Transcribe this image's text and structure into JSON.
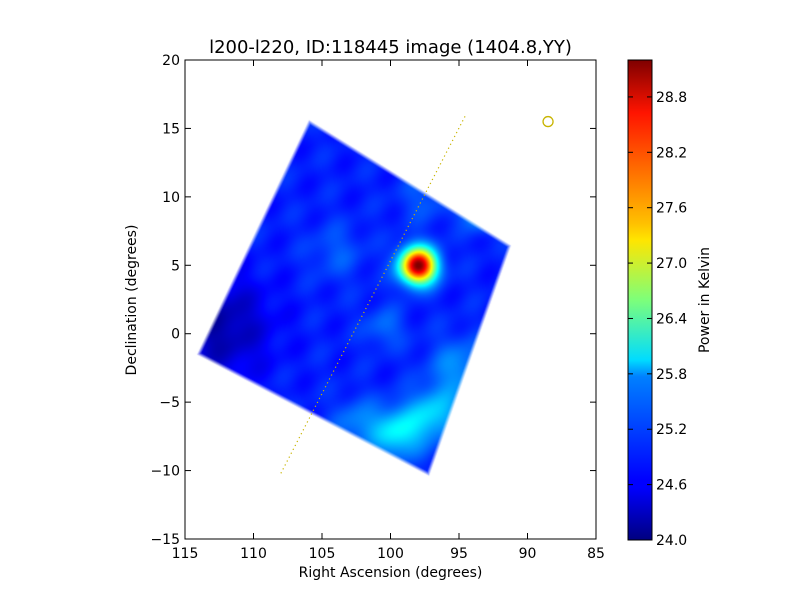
{
  "chart_data": {
    "type": "heatmap",
    "title": "l200-l220, ID:118445 image (1404.8,YY)",
    "xlabel": "Right Ascension (degrees)",
    "ylabel": "Declination (degrees)",
    "xlim": [
      115,
      85
    ],
    "ylim": [
      -15,
      20
    ],
    "xticks": [
      "115",
      "110",
      "105",
      "100",
      "95",
      "90",
      "85"
    ],
    "yticks": [
      "20",
      "15",
      "10",
      "5",
      "0",
      "−5",
      "−10",
      "−15"
    ],
    "grid": false,
    "map_footprint_corners_deg": [
      [
        106.0,
        15.7
      ],
      [
        91.2,
        6.5
      ],
      [
        97.2,
        -10.4
      ],
      [
        114.2,
        -1.5
      ]
    ],
    "background_level_K": 24.8,
    "sources": [
      {
        "ra": 98.0,
        "dec": 5.0,
        "peak_K": 29.2,
        "sigma_deg": 0.9
      },
      {
        "ra": 99.5,
        "dec": -7.2,
        "peak_K": 25.9,
        "sigma_deg": 1.3
      },
      {
        "ra": 96.8,
        "dec": -5.8,
        "peak_K": 25.7,
        "sigma_deg": 1.3
      },
      {
        "ra": 93.2,
        "dec": 9.3,
        "peak_K": 26.1,
        "sigma_deg": 1.0
      },
      {
        "ra": 95.0,
        "dec": -2.5,
        "peak_K": 25.4,
        "sigma_deg": 1.5
      },
      {
        "ra": 102.5,
        "dec": -6.5,
        "peak_K": 25.3,
        "sigma_deg": 1.2
      },
      {
        "ra": 100.5,
        "dec": 0.5,
        "peak_K": 25.2,
        "sigma_deg": 1.0
      },
      {
        "ra": 104.0,
        "dec": 6.0,
        "peak_K": 25.1,
        "sigma_deg": 1.4
      },
      {
        "ra": 97.5,
        "dec": 10.0,
        "peak_K": 25.1,
        "sigma_deg": 1.3
      }
    ],
    "cold_region": {
      "ra": 112.5,
      "dec": 0.5,
      "dip_K": -0.6,
      "sigma_deg": 2.5
    },
    "galactic_plane_line": [
      [
        108.0,
        -10.2
      ],
      [
        94.5,
        16.0
      ]
    ],
    "marker_circle": {
      "ra": 88.5,
      "dec": 15.5
    },
    "colorbar": {
      "label": "Power in Kelvin",
      "min": 24.0,
      "max": 29.2,
      "ticks": [
        "24.0",
        "24.6",
        "25.2",
        "25.8",
        "26.4",
        "27.0",
        "27.6",
        "28.2",
        "28.8"
      ],
      "colormap": "jet"
    },
    "colors": {
      "galactic_plane": "#c8b400",
      "marker": "#c8b400"
    }
  }
}
